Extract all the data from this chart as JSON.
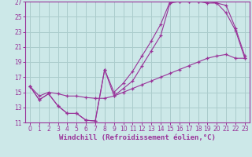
{
  "xlabel": "Windchill (Refroidissement éolien,°C)",
  "background_color": "#cce8e8",
  "grid_color": "#aacccc",
  "line_color": "#993399",
  "xlim": [
    -0.5,
    23.5
  ],
  "ylim": [
    11,
    27
  ],
  "xticks": [
    0,
    1,
    2,
    3,
    4,
    5,
    6,
    7,
    8,
    9,
    10,
    11,
    12,
    13,
    14,
    15,
    16,
    17,
    18,
    19,
    20,
    21,
    22,
    23
  ],
  "yticks": [
    11,
    13,
    15,
    17,
    19,
    21,
    23,
    25,
    27
  ],
  "line1_x": [
    0,
    1,
    2,
    3,
    4,
    5,
    6,
    7,
    8,
    9,
    10,
    11,
    12,
    13,
    14,
    15,
    16,
    17,
    18,
    19,
    20,
    21,
    22,
    23
  ],
  "line1_y": [
    15.8,
    14.0,
    14.8,
    13.2,
    12.2,
    12.2,
    11.3,
    11.2,
    18.0,
    14.5,
    15.5,
    16.5,
    18.5,
    20.5,
    22.5,
    26.8,
    27.0,
    27.0,
    27.0,
    26.8,
    26.8,
    25.5,
    23.2,
    19.5
  ],
  "line2_x": [
    0,
    1,
    2,
    3,
    4,
    5,
    6,
    7,
    8,
    9,
    10,
    11,
    12,
    13,
    14,
    15,
    16,
    17,
    18,
    19,
    20,
    21,
    22,
    23
  ],
  "line2_y": [
    15.8,
    14.0,
    14.8,
    13.2,
    12.2,
    12.2,
    11.3,
    11.2,
    18.0,
    15.0,
    16.2,
    17.8,
    19.8,
    21.8,
    24.0,
    27.0,
    27.0,
    27.0,
    27.0,
    27.0,
    26.8,
    26.5,
    23.5,
    19.8
  ],
  "line3_x": [
    0,
    1,
    2,
    3,
    4,
    5,
    6,
    7,
    8,
    9,
    10,
    11,
    12,
    13,
    14,
    15,
    16,
    17,
    18,
    19,
    20,
    21,
    22,
    23
  ],
  "line3_y": [
    15.8,
    14.5,
    15.0,
    14.8,
    14.5,
    14.5,
    14.3,
    14.2,
    14.2,
    14.5,
    15.0,
    15.5,
    16.0,
    16.5,
    17.0,
    17.5,
    18.0,
    18.5,
    19.0,
    19.5,
    19.8,
    20.0,
    19.5,
    19.5
  ],
  "xlabel_fontsize": 6.5,
  "tick_fontsize": 5.5
}
